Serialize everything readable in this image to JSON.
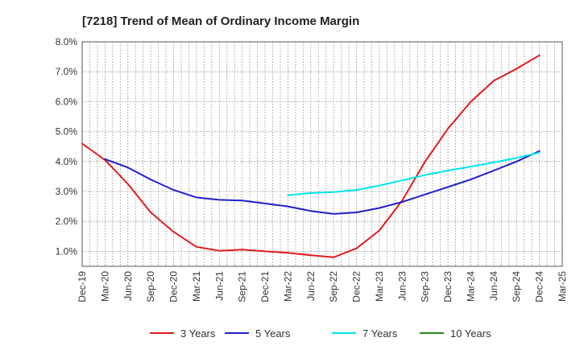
{
  "chart_data": {
    "type": "line",
    "title": "[7218]  Trend of Mean of Ordinary Income Margin",
    "xlabel": "",
    "ylabel": "",
    "ylim": [
      0.5,
      8.0
    ],
    "y_ticks": [
      "1.0%",
      "2.0%",
      "3.0%",
      "4.0%",
      "5.0%",
      "6.0%",
      "7.0%",
      "8.0%"
    ],
    "y_tick_values": [
      1,
      2,
      3,
      4,
      5,
      6,
      7,
      8
    ],
    "x_ticks": [
      "Dec-19",
      "Mar-20",
      "Jun-20",
      "Sep-20",
      "Dec-20",
      "Mar-21",
      "Jun-21",
      "Sep-21",
      "Dec-21",
      "Mar-22",
      "Jun-22",
      "Sep-22",
      "Dec-22",
      "Mar-23",
      "Jun-23",
      "Sep-23",
      "Dec-23",
      "Mar-24",
      "Jun-24",
      "Sep-24",
      "Dec-24",
      "Mar-25"
    ],
    "grid": true,
    "legend_position": "bottom",
    "series": [
      {
        "name": "3 Years",
        "color": "#e41a1c",
        "x": [
          "Dec-19",
          "Mar-20",
          "Jun-20",
          "Sep-20",
          "Dec-20",
          "Mar-21",
          "Jun-21",
          "Sep-21",
          "Dec-21",
          "Mar-22",
          "Jun-22",
          "Sep-22",
          "Dec-22",
          "Mar-23",
          "Jun-23",
          "Sep-23",
          "Dec-23",
          "Mar-24",
          "Jun-24",
          "Sep-24",
          "Dec-24"
        ],
        "values": [
          4.6,
          4.05,
          3.25,
          2.3,
          1.65,
          1.15,
          1.02,
          1.06,
          1.0,
          0.95,
          0.87,
          0.8,
          1.1,
          1.7,
          2.7,
          4.0,
          5.1,
          6.0,
          6.7,
          7.1,
          7.55
        ]
      },
      {
        "name": "5 Years",
        "color": "#1f1fcc",
        "x": [
          "Mar-20",
          "Jun-20",
          "Sep-20",
          "Dec-20",
          "Mar-21",
          "Jun-21",
          "Sep-21",
          "Dec-21",
          "Mar-22",
          "Jun-22",
          "Sep-22",
          "Dec-22",
          "Mar-23",
          "Jun-23",
          "Sep-23",
          "Dec-23",
          "Mar-24",
          "Jun-24",
          "Sep-24",
          "Dec-24"
        ],
        "values": [
          4.08,
          3.8,
          3.4,
          3.05,
          2.8,
          2.72,
          2.7,
          2.6,
          2.5,
          2.35,
          2.25,
          2.3,
          2.45,
          2.65,
          2.9,
          3.15,
          3.4,
          3.7,
          4.0,
          4.35
        ]
      },
      {
        "name": "7 Years",
        "color": "#00e5ee",
        "x": [
          "Mar-22",
          "Jun-22",
          "Sep-22",
          "Dec-22",
          "Mar-23",
          "Jun-23",
          "Sep-23",
          "Dec-23",
          "Mar-24",
          "Jun-24",
          "Sep-24",
          "Dec-24"
        ],
        "values": [
          2.87,
          2.95,
          2.98,
          3.05,
          3.2,
          3.37,
          3.55,
          3.7,
          3.83,
          3.97,
          4.12,
          4.3
        ]
      },
      {
        "name": "10 Years",
        "color": "#1e8c1e",
        "x": [],
        "values": []
      }
    ]
  }
}
